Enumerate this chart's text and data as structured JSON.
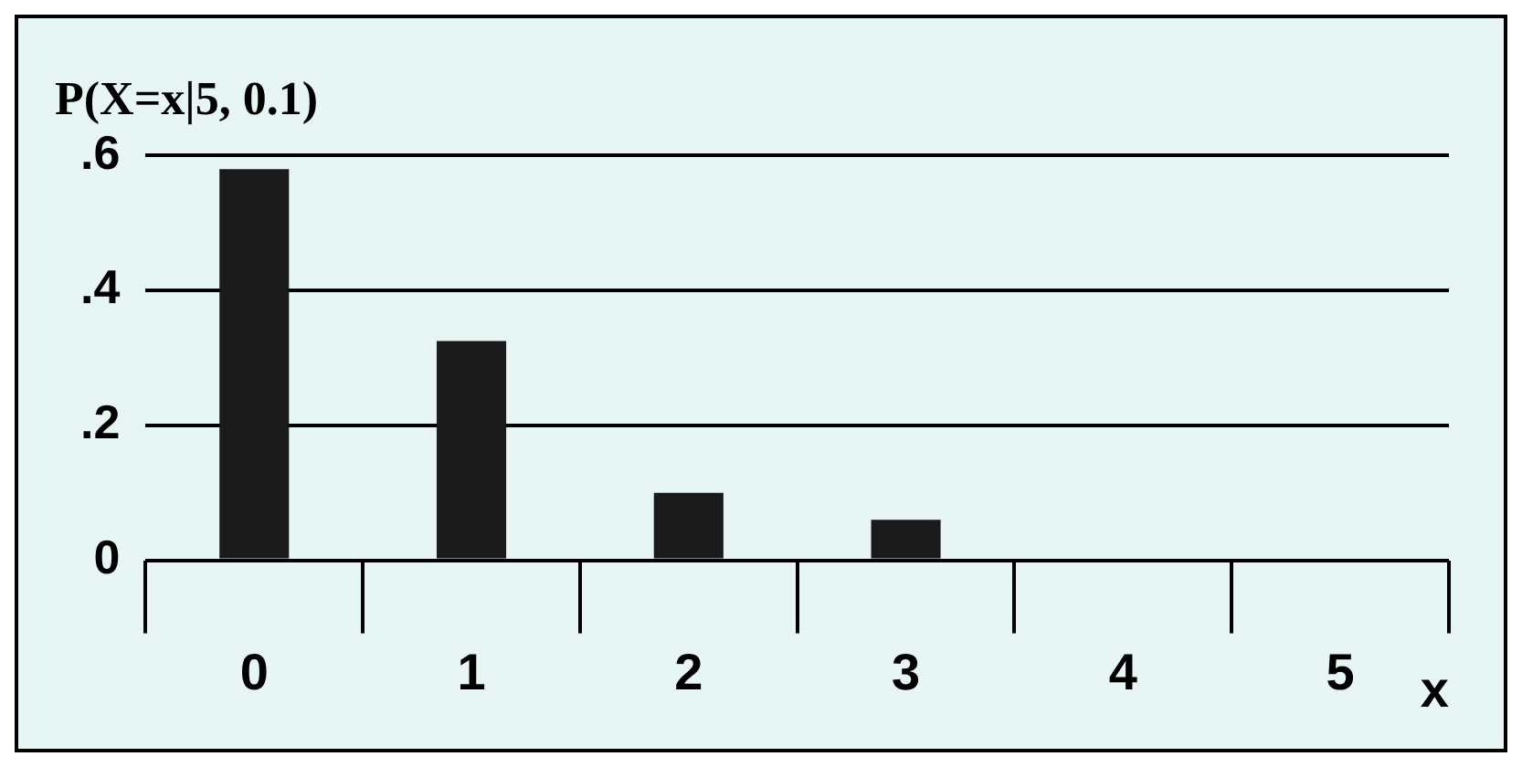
{
  "chart_data": {
    "type": "bar",
    "title": "P(X=x|5, 0.1)",
    "xlabel": "x",
    "categories": [
      "0",
      "1",
      "2",
      "3",
      "4",
      "5"
    ],
    "values": [
      0.58,
      0.325,
      0.1,
      0.06,
      0,
      0
    ],
    "color": "#1a1a1a",
    "ylim": [
      0,
      0.6
    ],
    "yticks": [
      0,
      {
        "value": 0.2,
        "label": ".2"
      },
      {
        "value": 0.4,
        "label": ".4"
      },
      {
        "value": 0.6,
        "label": ".6"
      }
    ],
    "grid": "y",
    "legend": false
  }
}
